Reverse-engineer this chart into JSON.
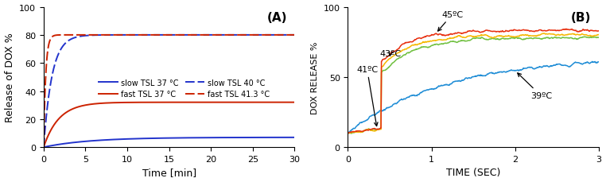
{
  "panel_A": {
    "title": "(A)",
    "xlabel": "Time [min]",
    "ylabel": "Release of DOX %",
    "xlim": [
      0,
      30
    ],
    "ylim": [
      0,
      100
    ],
    "xticks": [
      0,
      5,
      10,
      15,
      20,
      25,
      30
    ],
    "yticks": [
      0,
      20,
      40,
      60,
      80,
      100
    ],
    "blue_color": "#2233cc",
    "red_color": "#cc2200",
    "slow_37": {
      "plateau": 7,
      "rate": 0.18
    },
    "slow_40": {
      "plateau": 80,
      "rate": 1.0
    },
    "fast_37": {
      "plateau": 32,
      "rate": 0.55
    },
    "fast_413": {
      "plateau": 80,
      "rate": 4.0
    }
  },
  "panel_B": {
    "title": "(B)",
    "xlabel": "TIME (SEC)",
    "ylabel": "DOX RELEASE %",
    "xlim": [
      0,
      3
    ],
    "ylim": [
      0,
      100
    ],
    "xticks": [
      0,
      1,
      2,
      3
    ],
    "yticks": [
      0,
      50,
      100
    ],
    "color_39": "#1f8dd6",
    "color_41": "#70c040",
    "color_43": "#f5b800",
    "color_45": "#e83010",
    "39C": {
      "plateau": 65,
      "start": 10,
      "rate1": 0.3,
      "rate2": 0.5,
      "noise": 1.5
    },
    "41C": {
      "plateau": 78,
      "start": 10,
      "rate1": 4.0,
      "rate2": 1.5,
      "noise": 1.8
    },
    "43C": {
      "plateau": 80,
      "start": 10,
      "rate1": 4.5,
      "rate2": 1.5,
      "noise": 1.8
    },
    "45C": {
      "plateau": 83,
      "start": 10,
      "rate1": 5.0,
      "rate2": 1.8,
      "noise": 1.8
    },
    "ann_41_x": 0.1,
    "ann_41_y": 54,
    "ann_43_x": 0.38,
    "ann_43_y": 65,
    "ann_45_x": 1.12,
    "ann_45_y": 93,
    "ann_39_x": 2.18,
    "ann_39_y": 35
  },
  "background_color": "#ffffff"
}
